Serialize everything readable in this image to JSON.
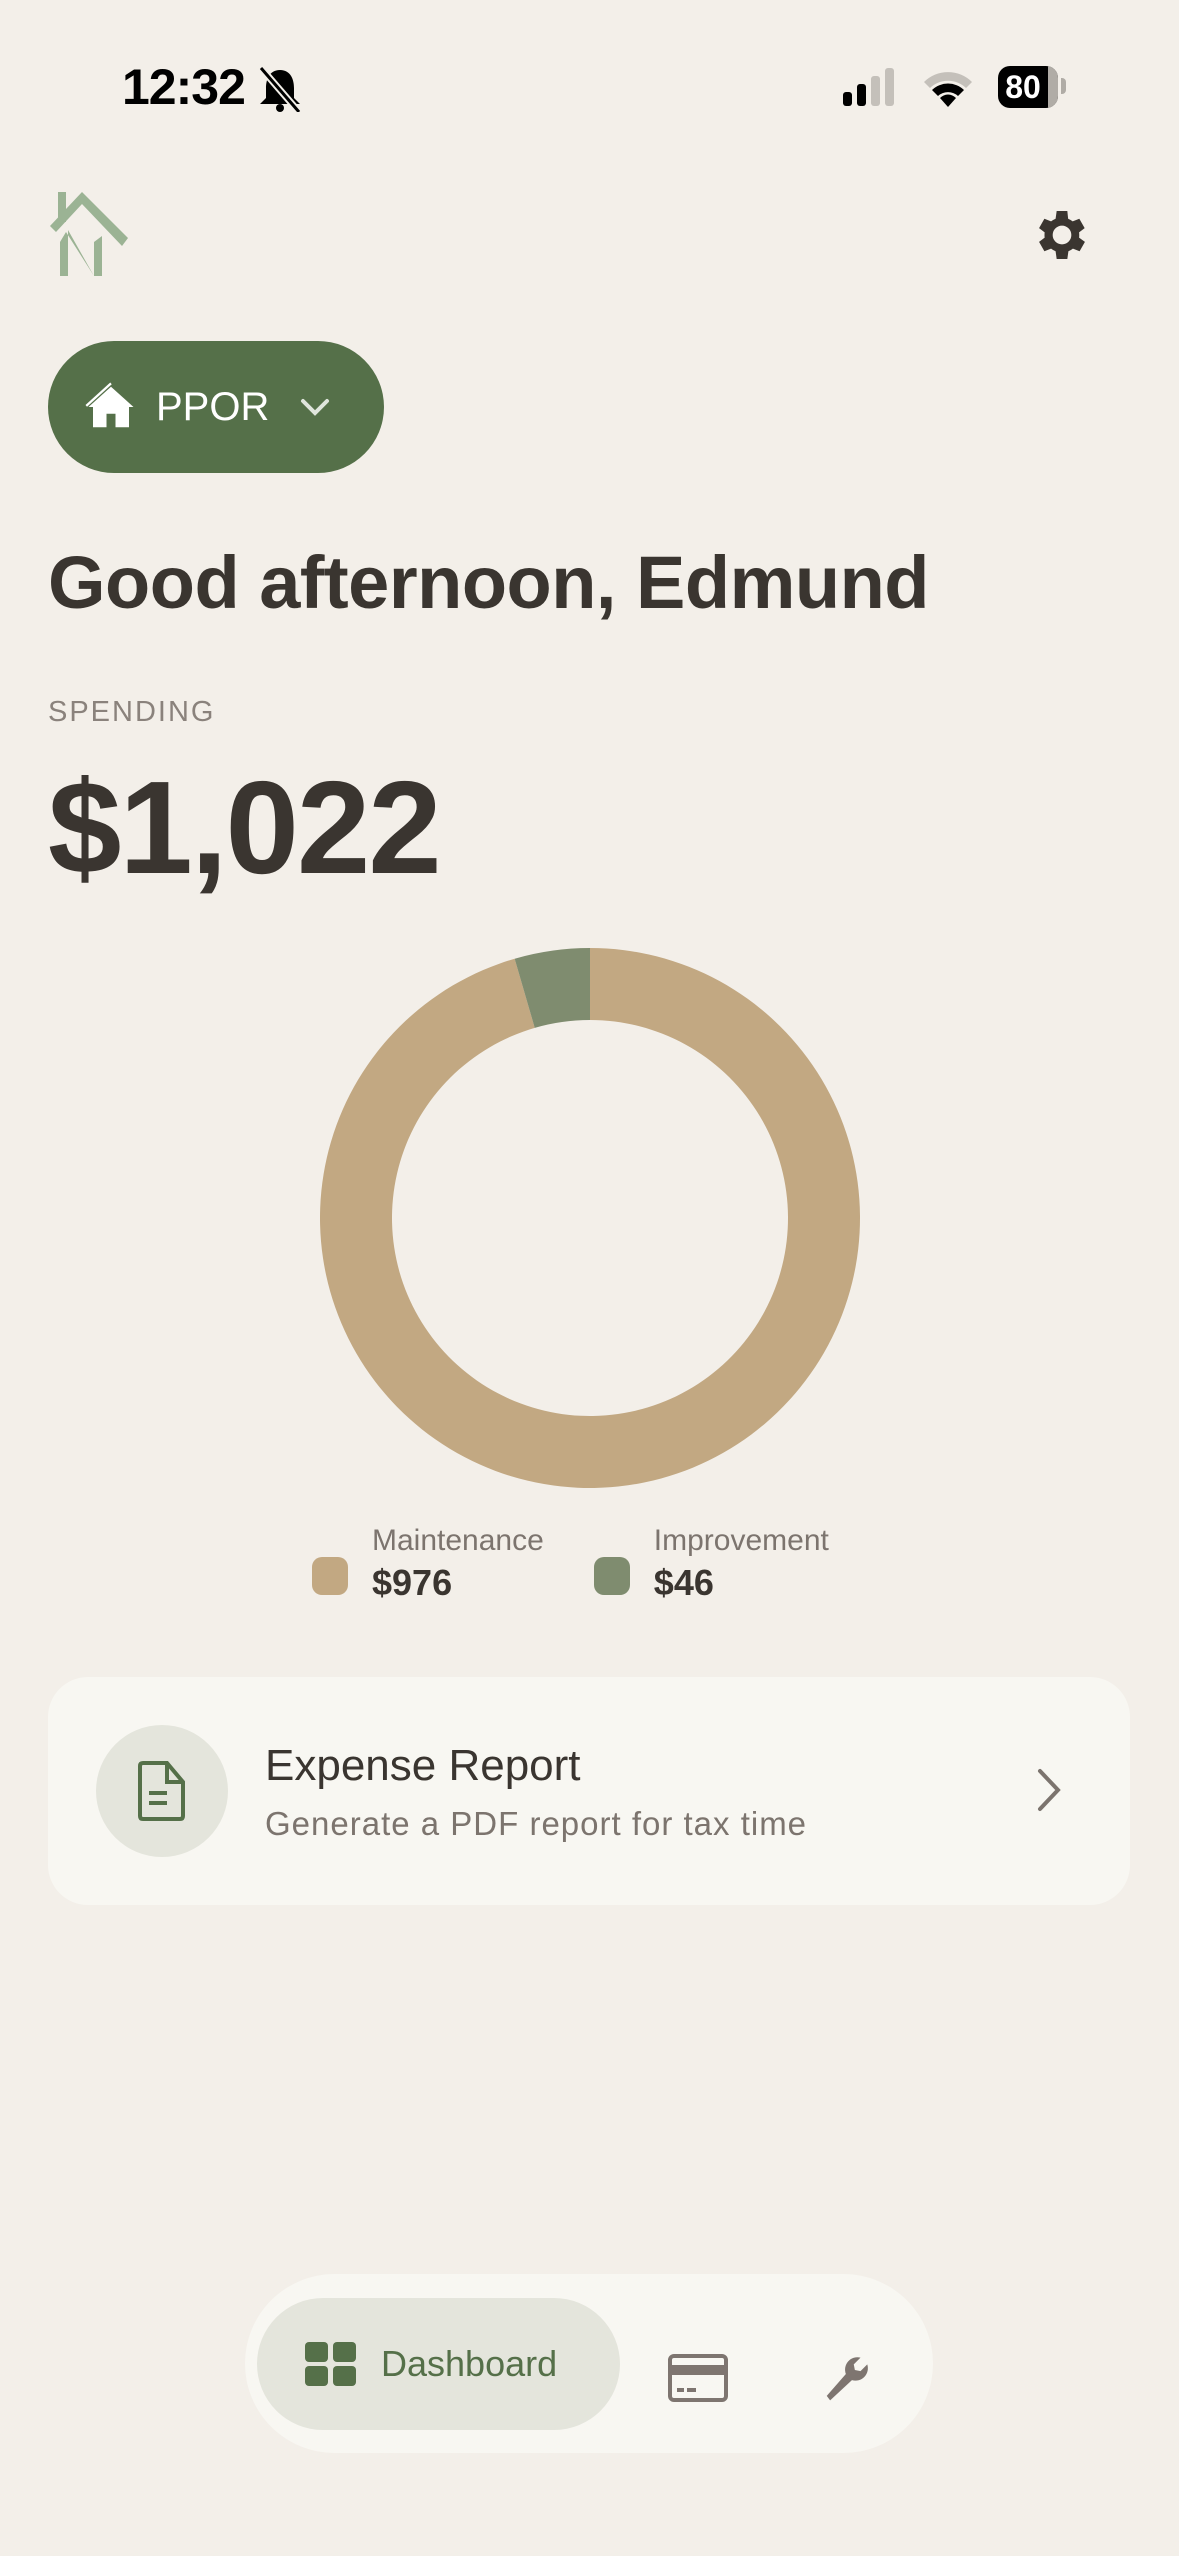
{
  "status_bar": {
    "time": "12:32",
    "battery": "80",
    "icons": [
      "bell-slash-icon",
      "signal-icon",
      "wifi-icon",
      "battery-icon"
    ]
  },
  "header": {
    "logo": "home-n-logo",
    "settings_icon": "gear-icon"
  },
  "property_selector": {
    "label": "PPOR",
    "icon": "house-icon"
  },
  "greeting": "Good afternoon, Edmund",
  "spending": {
    "label": "SPENDING",
    "total": "$1,022"
  },
  "chart_data": {
    "type": "pie",
    "donut": true,
    "categories": [
      "Maintenance",
      "Improvement"
    ],
    "values": [
      976,
      46
    ],
    "colors": [
      "#c2a882",
      "#7f8c6f"
    ],
    "legend": [
      {
        "name": "Maintenance",
        "value": "$976"
      },
      {
        "name": "Improvement",
        "value": "$46"
      }
    ]
  },
  "expense_card": {
    "title": "Expense Report",
    "subtitle": "Generate a PDF report for tax time",
    "icon": "document-icon"
  },
  "bottom_nav": {
    "items": [
      {
        "label": "Dashboard",
        "icon": "grid-icon",
        "active": true
      },
      {
        "label": "",
        "icon": "credit-card-icon"
      },
      {
        "label": "",
        "icon": "wrench-icon"
      }
    ]
  },
  "colors": {
    "background": "#f3efe9",
    "accent": "#557049",
    "text": "#3a3530"
  }
}
